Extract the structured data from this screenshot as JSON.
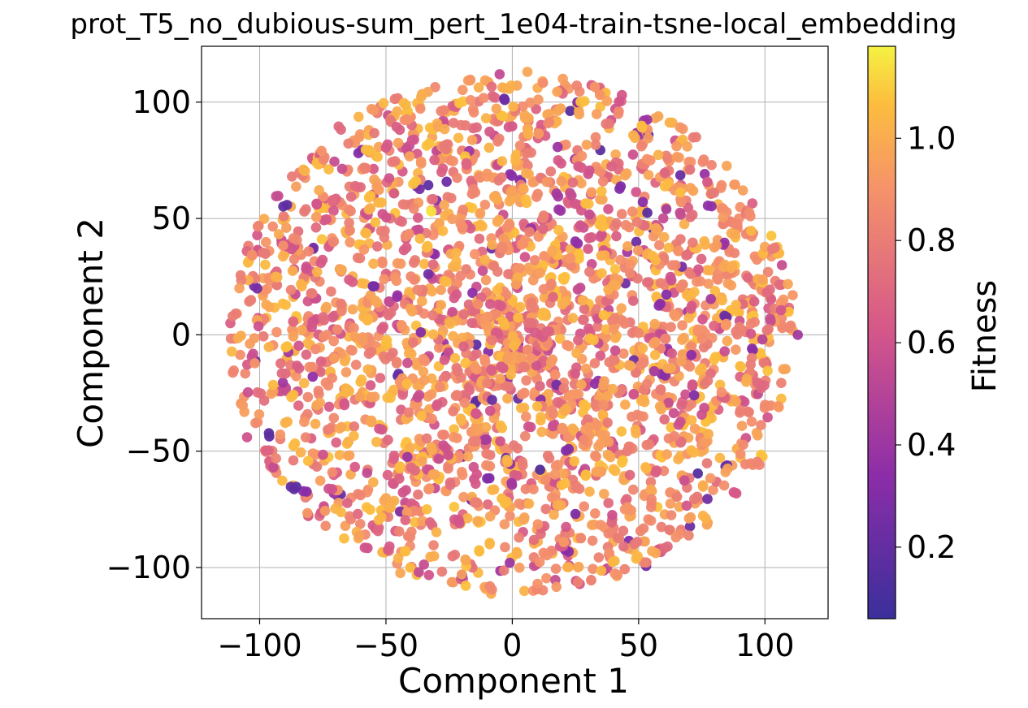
{
  "chart_data": {
    "type": "scatter",
    "title": "prot_T5_no_dubious-sum_pert_1e04-train-tsne-local_embedding",
    "xlabel": "Component 1",
    "ylabel": "Component 2",
    "xlim": [
      -123,
      125
    ],
    "ylim": [
      -122,
      124
    ],
    "x_ticks": [
      -100,
      -50,
      0,
      50,
      100
    ],
    "x_tick_labels": [
      "−100",
      "−50",
      "0",
      "50",
      "100"
    ],
    "y_ticks": [
      -100,
      -50,
      0,
      50,
      100
    ],
    "y_tick_labels": [
      "−100",
      "−50",
      "0",
      "50",
      "100"
    ],
    "grid": true,
    "colormap": "plasma",
    "colorbar": {
      "label": "Fitness",
      "range": [
        0.06,
        1.18
      ],
      "ticks": [
        0.2,
        0.4,
        0.6,
        0.8,
        1.0
      ],
      "tick_labels": [
        "0.2",
        "0.4",
        "0.6",
        "0.8",
        "1.0"
      ]
    },
    "point_count": 2200,
    "cloud_radius": 112,
    "highlighted_points": [
      {
        "x": 38,
        "y": 54,
        "value": 0.62
      },
      {
        "x": -32,
        "y": 53,
        "value": 1.15
      },
      {
        "x": 20,
        "y": 110,
        "value": 0.95
      },
      {
        "x": 113,
        "y": 0,
        "value": 0.42
      },
      {
        "x": 111,
        "y": 17,
        "value": 0.92
      },
      {
        "x": -108,
        "y": 20,
        "value": 0.95
      },
      {
        "x": -105,
        "y": -44,
        "value": 0.6
      },
      {
        "x": -8,
        "y": -28,
        "value": 0.22
      },
      {
        "x": 11,
        "y": -58,
        "value": 0.14
      },
      {
        "x": 25,
        "y": -77,
        "value": 0.28
      },
      {
        "x": 10,
        "y": -107,
        "value": 0.9
      },
      {
        "x": -20,
        "y": -103,
        "value": 0.95
      },
      {
        "x": 61,
        "y": 54,
        "value": 0.45
      },
      {
        "x": 99,
        "y": -2,
        "value": 0.5
      },
      {
        "x": -37,
        "y": -102,
        "value": 0.55
      },
      {
        "x": -1,
        "y": -98,
        "value": 0.4
      },
      {
        "x": 72,
        "y": -26,
        "value": 0.3
      },
      {
        "x": -79,
        "y": -18,
        "value": 0.35
      },
      {
        "x": 6,
        "y": 113,
        "value": 0.98
      },
      {
        "x": -5,
        "y": 112,
        "value": 0.55
      }
    ]
  }
}
